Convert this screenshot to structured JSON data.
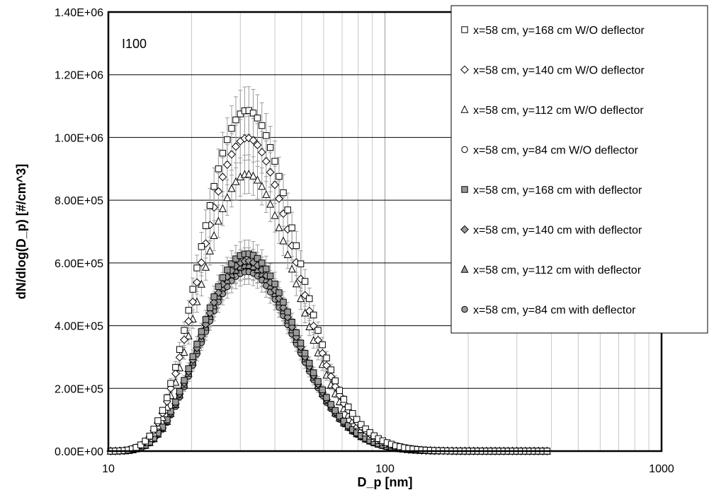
{
  "chart_data": {
    "type": "scatter",
    "title": "",
    "annotation": "I100",
    "xlabel": "D_p [nm]",
    "ylabel": "dN/dlog(D_p) [#/cm^3]",
    "xscale": "log",
    "xlim": [
      10,
      1000
    ],
    "ylim": [
      0,
      1400000
    ],
    "x_ticks": [
      10,
      100,
      1000
    ],
    "x_tick_labels": [
      "10",
      "100",
      "1000"
    ],
    "y_ticks": [
      0,
      200000,
      400000,
      600000,
      800000,
      1000000,
      1200000,
      1400000
    ],
    "y_tick_labels": [
      "0.00E+00",
      "2.00E+05",
      "4.00E+05",
      "6.00E+05",
      "8.00E+05",
      "1.00E+06",
      "1.20E+06",
      "1.40E+06"
    ],
    "grid": {
      "x_minor": true,
      "y_major": true
    },
    "legend_position": "top-right",
    "x": [
      10.2,
      10.6,
      11.0,
      11.4,
      11.8,
      12.2,
      12.6,
      13.1,
      13.6,
      14.1,
      14.6,
      15.1,
      15.7,
      16.3,
      16.8,
      17.5,
      18.1,
      18.8,
      19.5,
      20.2,
      20.9,
      21.7,
      22.5,
      23.3,
      24.1,
      25.0,
      25.9,
      26.9,
      27.9,
      28.9,
      30.0,
      31.1,
      32.2,
      33.4,
      34.6,
      35.9,
      37.2,
      38.5,
      40.0,
      41.4,
      42.9,
      44.5,
      46.1,
      47.8,
      49.6,
      51.4,
      53.3,
      55.2,
      57.3,
      59.4,
      61.5,
      63.8,
      66.1,
      68.5,
      71.0,
      73.7,
      76.4,
      79.1,
      82.0,
      85.1,
      88.2,
      91.4,
      94.7,
      98.2,
      101.8,
      105.5,
      109.4,
      113.4,
      117.6,
      121.9,
      126.3,
      131.0,
      135.8,
      140.7,
      145.9,
      151.2,
      156.8,
      162.5,
      168.5,
      174.7,
      181.1,
      187.7,
      194.6,
      201.7,
      209.1,
      216.7,
      224.7,
      232.9,
      241.4,
      250.3,
      259.5,
      269.0,
      278.8,
      289.0,
      299.6,
      310.6,
      322.0,
      333.8,
      346.0,
      358.7,
      371.8,
      385.4
    ],
    "series": [
      {
        "name": "x=58 cm, y=168 cm W/O deflector",
        "marker": "square",
        "fill": "#ffffff",
        "values": [
          0,
          200,
          750,
          1750,
          3600,
          6900,
          12000,
          20000,
          32000,
          48000,
          70000,
          97000,
          130000,
          170000,
          216000,
          267000,
          324000,
          385000,
          449000,
          516000,
          584000,
          652000,
          719000,
          783000,
          844000,
          900000,
          950000,
          993000,
          1029000,
          1056000,
          1075000,
          1085000,
          1086000,
          1078000,
          1062000,
          1038000,
          1006000,
          968000,
          924000,
          876000,
          824000,
          769000,
          712000,
          655000,
          597000,
          541000,
          486000,
          434000,
          385000,
          339000,
          297000,
          259000,
          224000,
          193000,
          165000,
          141000,
          120000,
          101000,
          85000,
          71000,
          59000,
          49000,
          40000,
          33000,
          27000,
          22000,
          17000,
          14000,
          11000,
          8500,
          6600,
          5100,
          3900,
          3000,
          2300,
          1700,
          1300,
          950,
          700,
          520,
          380,
          270,
          200,
          140,
          100,
          70,
          50,
          35,
          24,
          17,
          11,
          8,
          5,
          3,
          2,
          1,
          1,
          1,
          0,
          0,
          0,
          0
        ]
      },
      {
        "name": "x=58 cm, y=140 cm W/O deflector",
        "marker": "diamond",
        "fill": "#ffffff",
        "values": [
          0,
          180,
          700,
          1650,
          3400,
          6500,
          11300,
          18800,
          30000,
          45000,
          65000,
          90000,
          121000,
          158000,
          200000,
          247000,
          299000,
          355000,
          414000,
          476000,
          538000,
          601000,
          662000,
          721000,
          777000,
          828000,
          874000,
          913000,
          946000,
          971000,
          988000,
          997000,
          998000,
          991000,
          976000,
          953000,
          924000,
          889000,
          849000,
          805000,
          757000,
          707000,
          655000,
          602000,
          549000,
          497000,
          447000,
          399000,
          354000,
          312000,
          273000,
          238000,
          206000,
          178000,
          152000,
          130000,
          110000,
          93000,
          78000,
          65000,
          54000,
          45000,
          37000,
          30000,
          25000,
          20000,
          16000,
          13000,
          10000,
          7800,
          6100,
          4700,
          3600,
          2700,
          2100,
          1600,
          1200,
          870,
          640,
          470,
          340,
          250,
          180,
          130,
          90,
          64,
          45,
          31,
          22,
          15,
          10,
          7,
          5,
          3,
          2,
          1,
          1,
          1,
          0,
          0,
          0,
          0
        ]
      },
      {
        "name": "x=58 cm, y=112 cm W/O deflector",
        "marker": "triangle",
        "fill": "#ffffff",
        "values": [
          0,
          150,
          600,
          1450,
          3000,
          5700,
          10000,
          16600,
          26500,
          40000,
          58000,
          80000,
          107000,
          140000,
          177000,
          219000,
          265000,
          315000,
          367000,
          421000,
          476000,
          532000,
          586000,
          638000,
          687000,
          733000,
          773000,
          808000,
          837000,
          859000,
          874000,
          882000,
          883000,
          877000,
          864000,
          844000,
          818000,
          787000,
          751000,
          712000,
          670000,
          626000,
          580000,
          533000,
          486000,
          440000,
          396000,
          353000,
          313000,
          276000,
          242000,
          211000,
          183000,
          157000,
          135000,
          115000,
          97000,
          82000,
          69000,
          58000,
          48000,
          40000,
          33000,
          27000,
          22000,
          18000,
          14000,
          11000,
          9000,
          7000,
          5400,
          4200,
          3200,
          2400,
          1800,
          1400,
          1000,
          770,
          570,
          420,
          300,
          220,
          160,
          110,
          80,
          57,
          40,
          28,
          19,
          13,
          9,
          6,
          4,
          3,
          2,
          1,
          1,
          0,
          0,
          0,
          0,
          0
        ]
      },
      {
        "name": "x=58 cm, y=84 cm W/O deflector",
        "marker": "circle",
        "fill": "#ffffff",
        "values": [
          0,
          100,
          400,
          970,
          2000,
          3800,
          6700,
          11100,
          17700,
          26700,
          38700,
          53400,
          71400,
          93400,
          118000,
          146000,
          177000,
          210000,
          245000,
          281000,
          318000,
          355000,
          391000,
          426000,
          459000,
          489000,
          516000,
          539000,
          558000,
          573000,
          583000,
          588000,
          589000,
          585000,
          576000,
          563000,
          545000,
          524000,
          500000,
          474000,
          446000,
          417000,
          386000,
          355000,
          324000,
          293000,
          264000,
          235000,
          209000,
          184000,
          161000,
          141000,
          122000,
          105000,
          90000,
          77000,
          65000,
          55000,
          46000,
          38000,
          32000,
          27000,
          22000,
          18000,
          15000,
          12000,
          9500,
          7500,
          6000,
          4700,
          3600,
          2800,
          2100,
          1600,
          1200,
          900,
          680,
          510,
          380,
          280,
          200,
          150,
          107,
          76,
          53,
          38,
          26,
          18,
          13,
          9,
          6,
          4,
          3,
          2,
          1,
          1,
          0,
          0,
          0,
          0,
          0,
          0
        ]
      },
      {
        "name": "x=58 cm, y=168 cm with deflector",
        "marker": "square",
        "fill": "#999999",
        "values": [
          0,
          110,
          430,
          1040,
          2150,
          4100,
          7200,
          11900,
          19000,
          28600,
          41500,
          57300,
          76600,
          100000,
          126500,
          156500,
          190000,
          225500,
          263000,
          301500,
          341000,
          381000,
          419500,
          457000,
          492000,
          524500,
          553000,
          577500,
          597500,
          613000,
          623500,
          628500,
          629000,
          624500,
          614500,
          600000,
          581000,
          558500,
          533000,
          505000,
          475000,
          443500,
          411000,
          377500,
          344500,
          312000,
          280500,
          250000,
          222000,
          195500,
          171000,
          149000,
          129500,
          111500,
          95500,
          81500,
          69000,
          58500,
          49000,
          41000,
          34000,
          28500,
          23500,
          19000,
          15500,
          12700,
          10000,
          7900,
          6300,
          4900,
          3800,
          2900,
          2200,
          1700,
          1300,
          960,
          720,
          540,
          400,
          290,
          210,
          155,
          112,
          80,
          56,
          40,
          28,
          19,
          13,
          9,
          6,
          4,
          3,
          2,
          1,
          1,
          0,
          0,
          0,
          0,
          0,
          0
        ]
      },
      {
        "name": "x=58 cm, y=140 cm with deflector",
        "marker": "diamond",
        "fill": "#999999",
        "values": [
          0,
          105,
          415,
          1000,
          2070,
          3950,
          6950,
          11500,
          18300,
          27600,
          40000,
          55200,
          73900,
          96500,
          122000,
          151000,
          183000,
          217500,
          253500,
          290500,
          328500,
          367000,
          404000,
          440000,
          474000,
          505000,
          532500,
          556000,
          575500,
          590500,
          600500,
          605500,
          606000,
          601500,
          592000,
          578000,
          559500,
          538000,
          513500,
          486500,
          457500,
          427000,
          395500,
          363500,
          331500,
          300500,
          270000,
          241000,
          213500,
          188000,
          164500,
          143500,
          124500,
          107500,
          92000,
          78500,
          66500,
          56000,
          47000,
          39500,
          32800,
          27300,
          22500,
          18300,
          15000,
          12200,
          9700,
          7600,
          6100,
          4700,
          3600,
          2800,
          2100,
          1600,
          1200,
          920,
          690,
          520,
          380,
          280,
          200,
          150,
          107,
          76,
          54,
          38,
          26,
          18,
          13,
          9,
          6,
          4,
          3,
          2,
          1,
          1,
          0,
          0,
          0,
          0,
          0,
          0
        ]
      },
      {
        "name": "x=58 cm, y=112 cm with deflector",
        "marker": "triangle",
        "fill": "#999999",
        "values": [
          0,
          102,
          405,
          980,
          2020,
          3850,
          6800,
          11200,
          17900,
          27000,
          39100,
          54000,
          72200,
          94300,
          119500,
          148000,
          179000,
          212500,
          248000,
          284000,
          321000,
          358500,
          395000,
          430000,
          463000,
          493500,
          520500,
          543500,
          562500,
          577000,
          587000,
          592000,
          592500,
          588000,
          578500,
          565000,
          547000,
          526000,
          502000,
          475500,
          447500,
          417500,
          386500,
          355500,
          324500,
          294000,
          264000,
          235500,
          209000,
          184000,
          161000,
          140500,
          121500,
          105000,
          90000,
          76500,
          65000,
          55000,
          46000,
          38500,
          32000,
          26700,
          22000,
          18000,
          14700,
          12000,
          9500,
          7500,
          6000,
          4600,
          3600,
          2700,
          2100,
          1600,
          1200,
          900,
          680,
          510,
          370,
          270,
          200,
          145,
          105,
          75,
          53,
          37,
          26,
          18,
          12,
          8,
          6,
          4,
          3,
          2,
          1,
          1,
          0,
          0,
          0,
          0,
          0,
          0
        ]
      },
      {
        "name": "x=58 cm, y=84 cm with deflector",
        "marker": "circle",
        "fill": "#999999",
        "values": [
          0,
          98,
          390,
          945,
          1950,
          3720,
          6550,
          10800,
          17200,
          26000,
          37700,
          52000,
          69600,
          90900,
          115000,
          142500,
          172500,
          205000,
          239000,
          274000,
          309500,
          345500,
          380500,
          414500,
          446500,
          475500,
          501500,
          524000,
          542500,
          556500,
          566000,
          571000,
          571500,
          567000,
          558000,
          545000,
          527500,
          507000,
          484000,
          458500,
          431500,
          402500,
          373000,
          342500,
          312500,
          283500,
          254500,
          227000,
          201500,
          177500,
          155500,
          135500,
          117500,
          101000,
          86500,
          74000,
          62500,
          53000,
          44500,
          37000,
          31000,
          25800,
          21200,
          17300,
          14200,
          11500,
          9200,
          7300,
          5800,
          4500,
          3500,
          2600,
          2000,
          1500,
          1150,
          870,
          650,
          490,
          360,
          260,
          190,
          140,
          100,
          72,
          51,
          36,
          25,
          17,
          12,
          8,
          5,
          4,
          2,
          2,
          1,
          1,
          0,
          0,
          0,
          0,
          0,
          0
        ]
      }
    ]
  }
}
